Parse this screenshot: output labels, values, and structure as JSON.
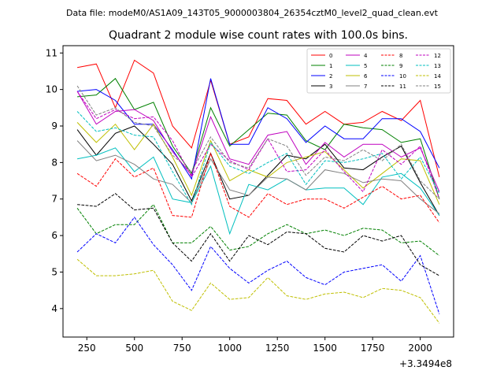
{
  "chart_data": {
    "type": "line",
    "suptitle": "Data file: modeM0/AS1A09_143T05_9000003804_26354cztM0_level2_quad_clean.evt",
    "title": "Quadrant 2 module wise count rates with 100.0s bins.",
    "xlabel": "",
    "ylabel": "",
    "x_offset_label": "+3.3494e8",
    "xlim": [
      125,
      2175
    ],
    "ylim": [
      3.22,
      11.2
    ],
    "xticks": [
      250,
      500,
      750,
      1000,
      1250,
      1500,
      1750,
      2000
    ],
    "xtick_labels": [
      "250",
      "500",
      "750",
      "1000",
      "1250",
      "1500",
      "1750",
      "2000"
    ],
    "yticks": [
      4,
      5,
      6,
      7,
      8,
      9,
      10,
      11
    ],
    "ytick_labels": [
      "4",
      "5",
      "6",
      "7",
      "8",
      "9",
      "10",
      "11"
    ],
    "grid": false,
    "legend_position": "upper-right",
    "legend_columns": 4,
    "x": [
      200,
      300,
      400,
      500,
      600,
      700,
      800,
      900,
      1000,
      1100,
      1200,
      1300,
      1400,
      1500,
      1600,
      1700,
      1800,
      1900,
      2000,
      2100
    ],
    "series": [
      {
        "name": "0",
        "color": "#ff0000",
        "dash": "solid",
        "values": [
          10.6,
          10.7,
          9.5,
          10.8,
          10.45,
          9.0,
          8.4,
          10.25,
          8.5,
          8.7,
          9.75,
          9.7,
          9.05,
          9.4,
          9.05,
          9.1,
          9.4,
          9.15,
          9.7,
          7.6
        ]
      },
      {
        "name": "1",
        "color": "#008000",
        "dash": "solid",
        "values": [
          9.8,
          9.85,
          10.3,
          9.45,
          9.65,
          8.45,
          7.7,
          9.5,
          8.45,
          8.9,
          9.35,
          9.3,
          8.6,
          8.35,
          9.05,
          8.95,
          8.9,
          8.55,
          8.65,
          7.0
        ]
      },
      {
        "name": "2",
        "color": "#0000ff",
        "dash": "solid",
        "values": [
          9.95,
          10.0,
          9.7,
          9.05,
          9.05,
          8.35,
          7.55,
          10.3,
          8.5,
          8.5,
          9.5,
          9.2,
          8.55,
          9.0,
          8.65,
          8.65,
          9.2,
          9.2,
          8.85,
          7.85
        ]
      },
      {
        "name": "3",
        "color": "#000000",
        "dash": "solid",
        "values": [
          8.9,
          8.2,
          8.8,
          9.0,
          8.5,
          7.95,
          6.95,
          8.25,
          7.0,
          7.1,
          7.65,
          8.2,
          8.1,
          8.5,
          7.85,
          7.8,
          8.15,
          8.45,
          7.45,
          6.55
        ]
      },
      {
        "name": "4",
        "color": "#bf00bf",
        "dash": "solid",
        "values": [
          9.95,
          9.05,
          9.4,
          9.45,
          9.15,
          8.3,
          7.65,
          9.25,
          8.1,
          7.95,
          8.75,
          8.85,
          7.95,
          8.55,
          8.15,
          8.5,
          8.5,
          8.15,
          8.4,
          7.2
        ]
      },
      {
        "name": "5",
        "color": "#00bfbf",
        "dash": "solid",
        "values": [
          8.1,
          8.2,
          8.4,
          7.75,
          8.15,
          7.0,
          6.9,
          7.9,
          6.05,
          7.4,
          7.25,
          7.55,
          7.25,
          7.3,
          7.3,
          6.85,
          7.6,
          7.7,
          7.3,
          6.55
        ]
      },
      {
        "name": "6",
        "color": "#bfbf00",
        "dash": "solid",
        "values": [
          9.1,
          8.55,
          9.05,
          8.35,
          9.05,
          8.15,
          7.1,
          8.6,
          7.5,
          7.8,
          7.6,
          8.0,
          8.15,
          8.3,
          7.8,
          7.3,
          7.7,
          8.1,
          8.05,
          6.85
        ]
      },
      {
        "name": "7",
        "color": "#808080",
        "dash": "solid",
        "values": [
          8.6,
          8.05,
          8.2,
          7.95,
          7.55,
          7.4,
          6.9,
          8.1,
          7.25,
          7.1,
          7.6,
          7.55,
          7.25,
          7.8,
          7.7,
          7.45,
          7.55,
          7.5,
          7.0,
          6.6
        ]
      },
      {
        "name": "8",
        "color": "#ff0000",
        "dash": "dashed",
        "values": [
          7.7,
          7.35,
          8.1,
          7.6,
          7.85,
          6.55,
          6.5,
          8.25,
          6.8,
          6.5,
          7.15,
          6.85,
          7.0,
          7.0,
          6.75,
          7.05,
          7.35,
          7.0,
          7.1,
          6.35
        ]
      },
      {
        "name": "9",
        "color": "#008000",
        "dash": "dashed",
        "values": [
          6.75,
          6.05,
          6.3,
          6.3,
          6.85,
          5.8,
          5.8,
          6.25,
          5.6,
          5.7,
          6.05,
          6.3,
          6.05,
          6.15,
          6.0,
          6.2,
          6.15,
          5.8,
          5.85,
          5.45
        ]
      },
      {
        "name": "10",
        "color": "#0000ff",
        "dash": "dashed",
        "values": [
          5.55,
          6.05,
          5.8,
          6.5,
          5.75,
          5.2,
          4.5,
          5.7,
          5.1,
          4.7,
          5.05,
          5.3,
          4.85,
          4.65,
          5.0,
          5.1,
          5.2,
          4.75,
          5.45,
          3.85
        ]
      },
      {
        "name": "11",
        "color": "#000000",
        "dash": "dashed",
        "values": [
          6.85,
          6.8,
          7.15,
          6.7,
          6.75,
          5.8,
          5.3,
          6.05,
          5.3,
          6.0,
          5.75,
          6.1,
          6.05,
          5.65,
          5.55,
          6.0,
          5.85,
          6.0,
          5.2,
          4.9
        ]
      },
      {
        "name": "12",
        "color": "#bf00bf",
        "dash": "dashed",
        "values": [
          9.95,
          9.2,
          9.45,
          9.2,
          9.25,
          8.6,
          7.6,
          8.5,
          8.05,
          7.8,
          8.65,
          7.75,
          7.8,
          8.35,
          7.75,
          7.2,
          8.35,
          7.95,
          8.45,
          7.0
        ]
      },
      {
        "name": "13",
        "color": "#00bfbf",
        "dash": "dashed",
        "values": [
          9.4,
          8.85,
          8.95,
          8.75,
          8.7,
          7.75,
          6.85,
          8.55,
          7.9,
          7.7,
          8.0,
          8.25,
          7.4,
          8.05,
          8.0,
          8.1,
          8.25,
          7.55,
          8.15,
          7.15
        ]
      },
      {
        "name": "14",
        "color": "#bfbf00",
        "dash": "dashed",
        "values": [
          5.35,
          4.9,
          4.9,
          4.95,
          5.05,
          4.2,
          3.95,
          4.7,
          4.25,
          4.3,
          4.85,
          4.35,
          4.25,
          4.4,
          4.45,
          4.3,
          4.55,
          4.5,
          4.3,
          3.6
        ]
      },
      {
        "name": "15",
        "color": "#808080",
        "dash": "dashed",
        "values": [
          10.1,
          9.3,
          9.5,
          9.1,
          9.0,
          8.2,
          7.75,
          8.7,
          8.0,
          7.85,
          8.65,
          8.45,
          7.65,
          8.15,
          8.05,
          8.35,
          8.05,
          8.5,
          7.5,
          7.0
        ]
      }
    ]
  }
}
